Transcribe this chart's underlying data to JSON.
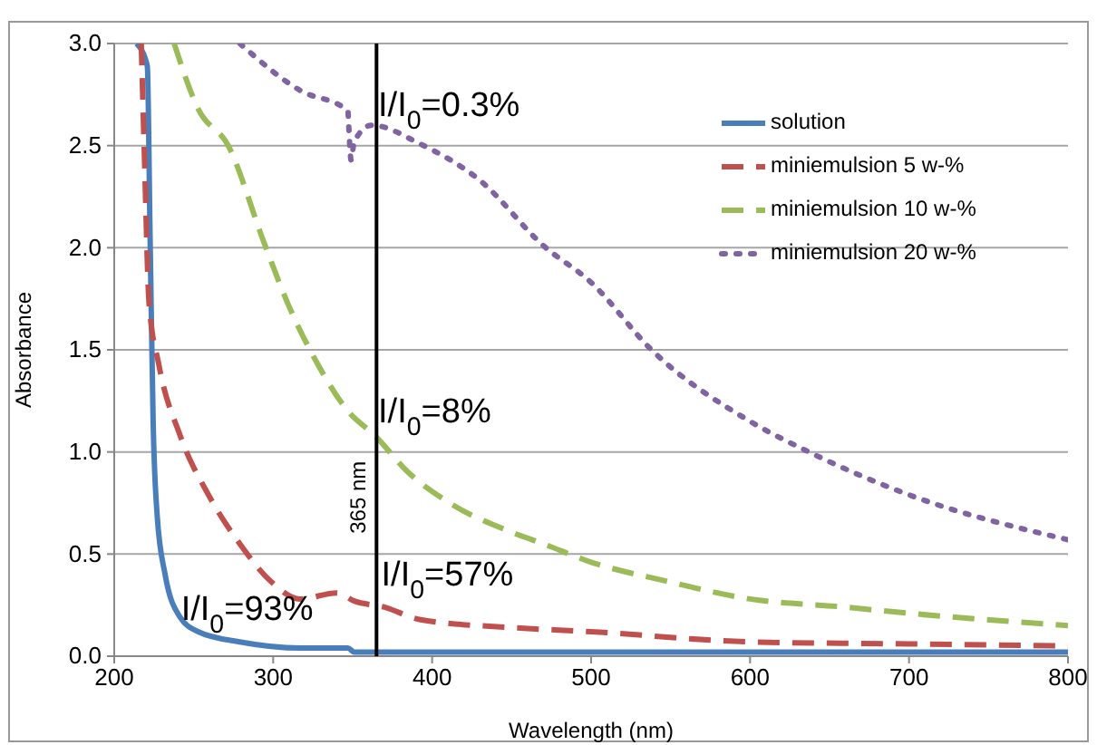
{
  "chart_data": {
    "type": "line",
    "xlabel": "Wavelength (nm)",
    "ylabel": "Absorbance",
    "xlim": [
      200,
      800
    ],
    "xticks": [
      200,
      300,
      400,
      500,
      600,
      700,
      800
    ],
    "ylim": [
      0,
      3.0
    ],
    "yticks": [
      {
        "value": 0,
        "label": "0.0"
      },
      {
        "value": 0.5,
        "label": "0.5"
      },
      {
        "value": 1,
        "label": "1.0"
      },
      {
        "value": 1.5,
        "label": "1.5"
      },
      {
        "value": 2,
        "label": "2.0"
      },
      {
        "value": 2.5,
        "label": "2.5"
      },
      {
        "value": 3,
        "label": "3.0"
      }
    ],
    "grid": "y",
    "legend": "top right",
    "series": [
      {
        "name": "solution",
        "color": "#4a7ebb",
        "line_style": "solid",
        "x": [
          214,
          220.8,
          222.6,
          224.5,
          227,
          232,
          241.5,
          252.8,
          279,
          317,
          347,
          351,
          366,
          500,
          600,
          700,
          800
        ],
        "values": [
          3.0,
          2.89,
          2.03,
          1.14,
          0.69,
          0.4,
          0.19,
          0.12,
          0.07,
          0.04,
          0.04,
          0.02,
          0.02,
          0.02,
          0.02,
          0.02,
          0.02
        ]
      },
      {
        "name": "miniemulsion 5 w-%",
        "color": "#c0504d",
        "line_style": "dashed",
        "x": [
          217,
          218.9,
          221.9,
          228,
          241.5,
          260,
          279,
          298,
          317,
          340,
          351,
          370,
          392,
          450,
          500,
          600,
          700,
          800
        ],
        "values": [
          3.0,
          2.47,
          1.73,
          1.43,
          1.08,
          0.78,
          0.55,
          0.37,
          0.28,
          0.31,
          0.27,
          0.24,
          0.18,
          0.14,
          0.12,
          0.07,
          0.06,
          0.05
        ]
      },
      {
        "name": "miniemulsion 10 w-%",
        "color": "#9bbb59",
        "line_style": "dashed",
        "x": [
          237.7,
          252.8,
          271.7,
          294,
          309,
          328,
          347,
          364,
          385,
          411,
          449,
          470,
          500,
          546,
          600,
          660,
          700,
          800
        ],
        "values": [
          3.0,
          2.68,
          2.5,
          2.03,
          1.73,
          1.43,
          1.2,
          1.08,
          0.9,
          0.75,
          0.61,
          0.55,
          0.46,
          0.37,
          0.28,
          0.24,
          0.21,
          0.15
        ]
      },
      {
        "name": "miniemulsion 20 w-%",
        "color": "#8064a2",
        "line_style": "dotted",
        "x": [
          279,
          317,
          347,
          347.5,
          349,
          351,
          362,
          392,
          430,
          470,
          500,
          538,
          600,
          637,
          700,
          800
        ],
        "values": [
          3.0,
          2.77,
          2.67,
          2.6,
          2.43,
          2.52,
          2.6,
          2.51,
          2.33,
          2.01,
          1.83,
          1.5,
          1.15,
          1.0,
          0.79,
          0.57
        ]
      }
    ],
    "ref_lines": [
      {
        "axis": "x",
        "value": 365,
        "label": "365 nm",
        "color": "#000000",
        "line_style": "solid"
      }
    ],
    "annotations": [
      {
        "text": "I/I$_{0}$=0.3%",
        "x": 366,
        "y": 2.69
      },
      {
        "text": "I/I$_{0}$=8%",
        "x": 366,
        "y": 1.19
      },
      {
        "text": "I/I$_{0}$=57%",
        "x": 368,
        "y": 0.39
      },
      {
        "text": "I/I$_{0}$=93%",
        "x": 242,
        "y": 0.22
      }
    ]
  }
}
